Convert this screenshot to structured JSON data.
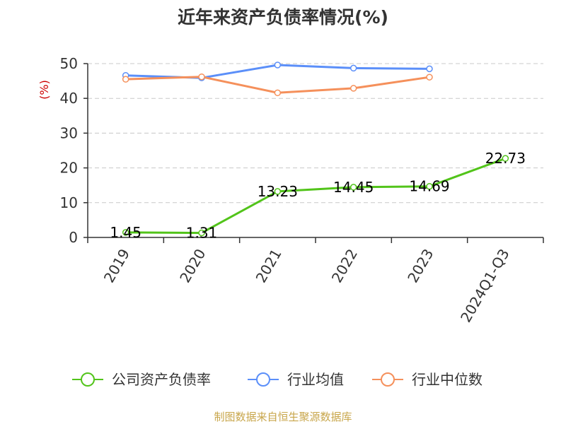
{
  "chart_data": {
    "type": "line",
    "title": "近年来资产负债率情况(%)",
    "ylabel": "(%)",
    "xlabel": "",
    "categories": [
      "2019",
      "2020",
      "2021",
      "2022",
      "2023",
      "2024Q1-Q3"
    ],
    "ylim": [
      0,
      50
    ],
    "yticks": [
      0,
      10,
      20,
      30,
      40,
      50
    ],
    "grid": true,
    "legend_position": "bottom",
    "series": [
      {
        "name": "公司资产负债率",
        "color": "#52c41a",
        "values": [
          1.45,
          1.31,
          13.23,
          14.45,
          14.69,
          22.73
        ],
        "labels": [
          "1.45",
          "1.31",
          "13.23",
          "14.45",
          "14.69",
          "22.73"
        ],
        "show_labels": true
      },
      {
        "name": "行业均值",
        "color": "#5b8ff9",
        "values": [
          46.6,
          45.9,
          49.6,
          48.7,
          48.5,
          null
        ],
        "show_labels": false
      },
      {
        "name": "行业中位数",
        "color": "#f5905b",
        "values": [
          45.5,
          46.2,
          41.6,
          42.9,
          46.1,
          null
        ],
        "show_labels": false
      }
    ]
  },
  "footer": {
    "source": "制图数据来自恒生聚源数据库"
  }
}
